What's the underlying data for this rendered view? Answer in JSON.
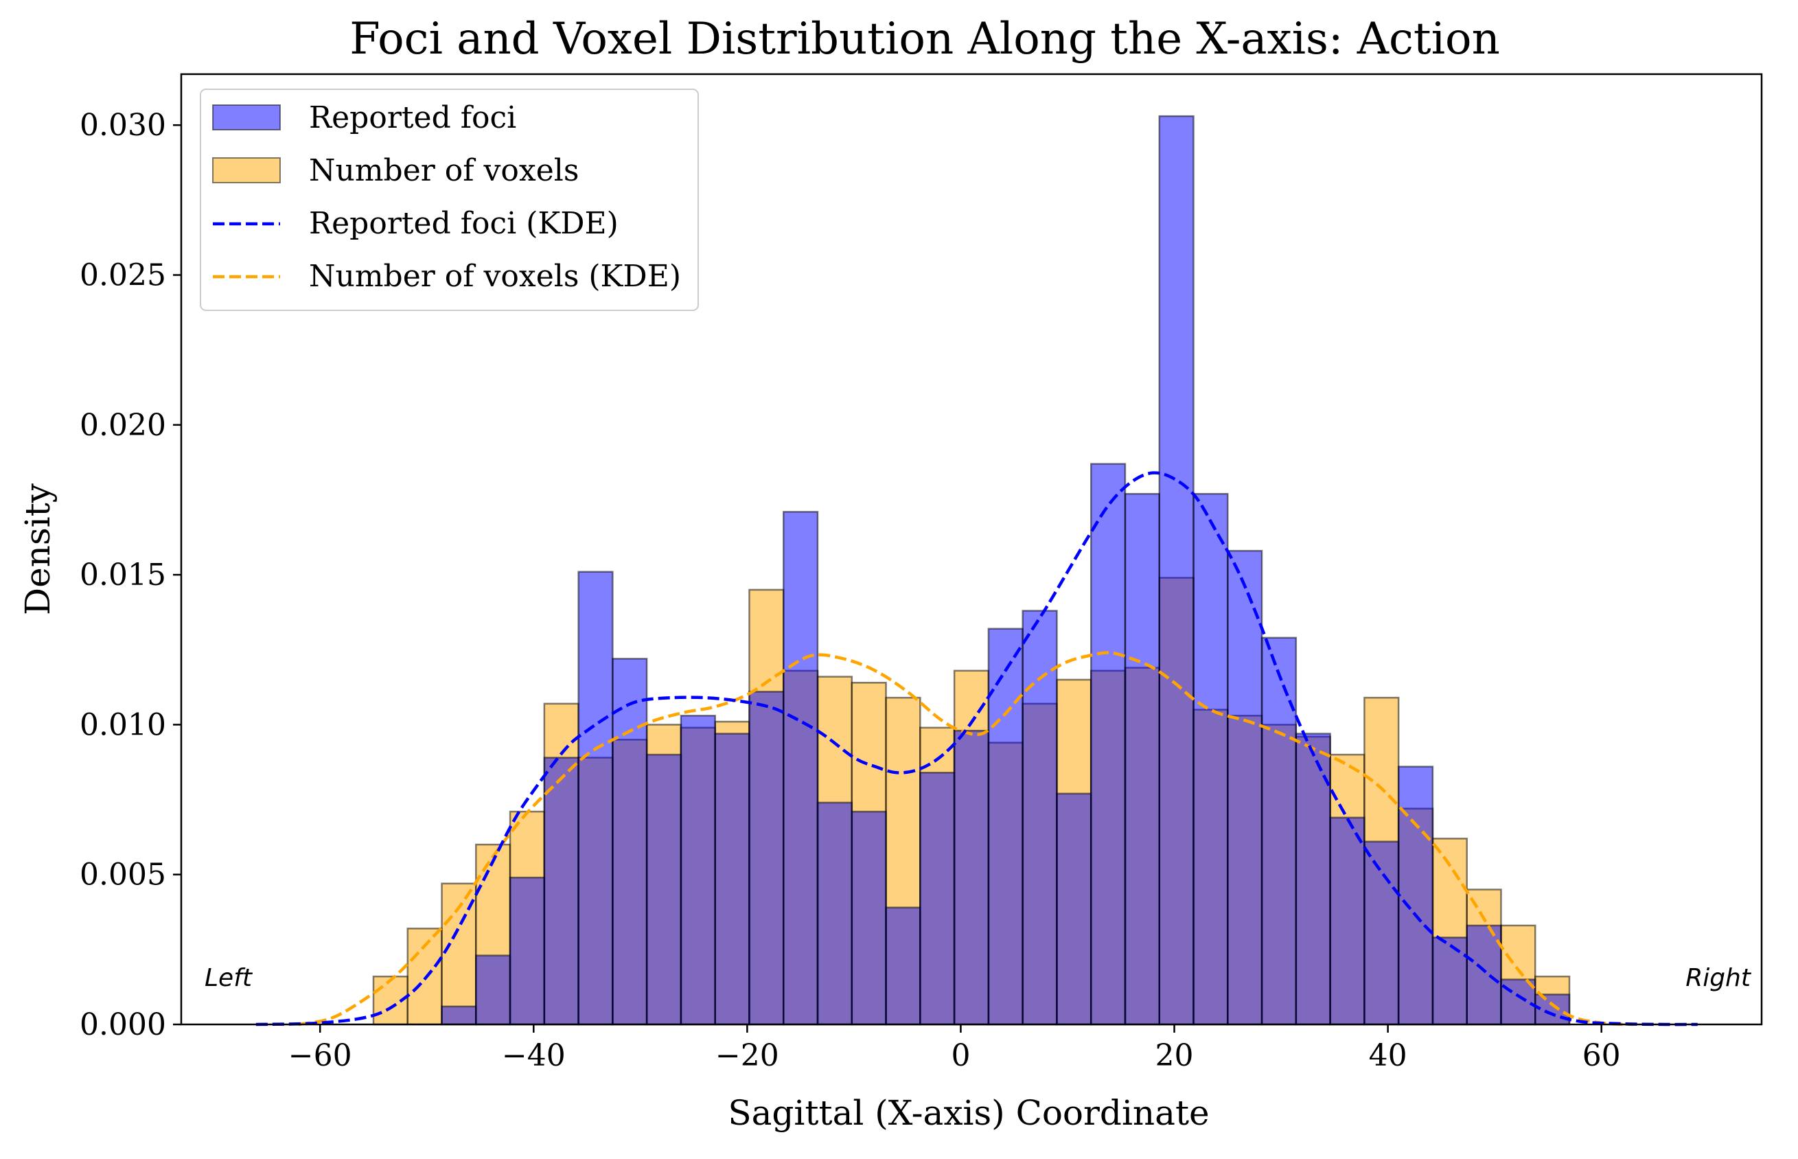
{
  "chart_data": {
    "type": "bar",
    "title": "Foci and Voxel Distribution Along the X-axis: Action",
    "xlabel": "Sagittal (X-axis) Coordinate",
    "ylabel": "Density",
    "xlim": [
      -73,
      75
    ],
    "ylim": [
      0,
      0.0317
    ],
    "xticks": [
      -60,
      -40,
      -20,
      0,
      20,
      40,
      60
    ],
    "xtick_labels": [
      "−60",
      "−40",
      "−20",
      "0",
      "20",
      "40",
      "60"
    ],
    "yticks": [
      0,
      0.005,
      0.01,
      0.015,
      0.02,
      0.025,
      0.03
    ],
    "ytick_labels": [
      "0.000",
      "0.005",
      "0.010",
      "0.015",
      "0.020",
      "0.025",
      "0.030"
    ],
    "grid": false,
    "legend_position": "top-left",
    "annotations": {
      "left": "Left",
      "right": "Right"
    },
    "colors": {
      "foci": "#0000ff",
      "voxels": "#ffa500",
      "edge": "#000000"
    },
    "bin_edges": [
      -55,
      -51.8,
      -48.6,
      -45.4,
      -42.2,
      -39,
      -35.8,
      -32.6,
      -29.4,
      -26.2,
      -23,
      -19.8,
      -16.6,
      -13.4,
      -10.2,
      -7,
      -3.8,
      -0.6,
      2.6,
      5.8,
      9,
      12.2,
      15.4,
      18.6,
      21.8,
      25,
      28.2,
      31.4,
      34.6,
      37.8,
      41,
      44.2,
      47.4,
      50.6,
      53.8,
      57
    ],
    "series": [
      {
        "name": "Reported foci",
        "kind": "hist",
        "values": [
          0,
          0,
          0.0006,
          0.0023,
          0.0049,
          0.0089,
          0.0151,
          0.0122,
          0.009,
          0.0103,
          0.0097,
          0.0111,
          0.0171,
          0.0074,
          0.0071,
          0.0039,
          0.0084,
          0.0098,
          0.0132,
          0.0138,
          0.0077,
          0.0187,
          0.0177,
          0.0303,
          0.0177,
          0.0158,
          0.0129,
          0.0097,
          0.0069,
          0.0061,
          0.0086,
          0.0029,
          0.0033,
          0.0015,
          0.001,
          0
        ]
      },
      {
        "name": "Number of voxels",
        "kind": "hist",
        "values": [
          0.0016,
          0.0032,
          0.0047,
          0.006,
          0.0071,
          0.0107,
          0.0089,
          0.0095,
          0.01,
          0.0099,
          0.0101,
          0.0145,
          0.0118,
          0.0116,
          0.0114,
          0.0109,
          0.0099,
          0.0118,
          0.0094,
          0.0107,
          0.0115,
          0.0118,
          0.0119,
          0.0149,
          0.0105,
          0.0103,
          0.01,
          0.0096,
          0.009,
          0.0109,
          0.0072,
          0.0062,
          0.0045,
          0.0033,
          0.0016,
          0
        ]
      },
      {
        "name": "Reported foci (KDE)",
        "kind": "kde",
        "x": [
          -66,
          -60,
          -55,
          -52,
          -50,
          -48,
          -45,
          -42,
          -40,
          -37,
          -35,
          -32,
          -30,
          -27,
          -24,
          -21,
          -18,
          -16,
          -13,
          -10,
          -8,
          -6,
          -4,
          -2,
          0,
          2,
          4,
          6,
          8,
          10,
          12,
          14,
          16,
          18,
          20,
          22,
          24,
          26,
          28,
          30,
          32,
          34,
          36,
          38,
          40,
          42,
          44,
          46,
          48,
          50,
          52,
          55,
          58,
          62,
          66,
          69
        ],
        "y": [
          0,
          5e-05,
          0.0003,
          0.0009,
          0.0016,
          0.0026,
          0.0046,
          0.0067,
          0.0078,
          0.0092,
          0.0098,
          0.0105,
          0.0108,
          0.0109,
          0.0109,
          0.0108,
          0.0106,
          0.0103,
          0.0097,
          0.0089,
          0.0086,
          0.0084,
          0.0085,
          0.0089,
          0.0096,
          0.0106,
          0.0117,
          0.0128,
          0.0139,
          0.0151,
          0.0163,
          0.0174,
          0.0181,
          0.0184,
          0.0182,
          0.0176,
          0.0164,
          0.0151,
          0.0134,
          0.0115,
          0.0098,
          0.0083,
          0.007,
          0.0058,
          0.0048,
          0.0039,
          0.0031,
          0.0026,
          0.0021,
          0.0015,
          0.001,
          0.0004,
          0.0001,
          2e-05,
          0,
          0
        ]
      },
      {
        "name": "Number of voxels (KDE)",
        "kind": "kde",
        "x": [
          -62,
          -59,
          -56,
          -53,
          -50,
          -47,
          -44,
          -41,
          -38,
          -35,
          -32,
          -29,
          -26,
          -23,
          -20,
          -17,
          -14,
          -11,
          -8,
          -5,
          -2,
          0,
          2,
          4,
          6,
          8,
          10,
          12,
          14,
          16,
          18,
          20,
          22,
          24,
          27,
          30,
          33,
          36,
          39,
          42,
          45,
          48,
          51,
          54,
          57,
          60,
          63
        ],
        "y": [
          0,
          0.0002,
          0.0008,
          0.0016,
          0.0027,
          0.0039,
          0.0055,
          0.0069,
          0.008,
          0.009,
          0.0096,
          0.0101,
          0.0104,
          0.0106,
          0.011,
          0.0117,
          0.0123,
          0.0122,
          0.0118,
          0.0111,
          0.0102,
          0.0098,
          0.0097,
          0.0103,
          0.0111,
          0.0117,
          0.0121,
          0.0123,
          0.0124,
          0.0122,
          0.0119,
          0.0114,
          0.0108,
          0.0104,
          0.0101,
          0.0097,
          0.0092,
          0.0087,
          0.008,
          0.0069,
          0.0057,
          0.0041,
          0.0024,
          0.0011,
          0.0003,
          5e-05,
          0
        ]
      }
    ]
  }
}
